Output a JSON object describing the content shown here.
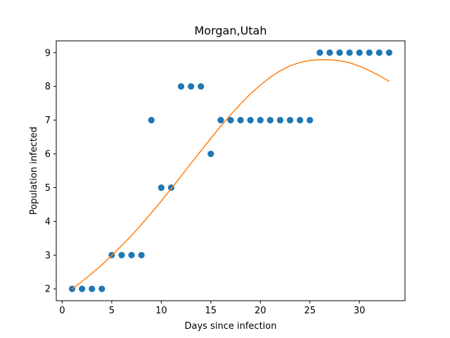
{
  "chart_data": {
    "type": "scatter",
    "title": "Morgan,Utah",
    "xlabel": "Days since infection",
    "ylabel": "Population infected",
    "xlim": [
      -0.6,
      34.6
    ],
    "ylim": [
      1.65,
      9.35
    ],
    "xticks": [
      0,
      5,
      10,
      15,
      20,
      25,
      30
    ],
    "yticks": [
      2,
      3,
      4,
      5,
      6,
      7,
      8,
      9
    ],
    "grid": false,
    "series": [
      {
        "kind": "scatter",
        "color": "#1f77b4",
        "x": [
          1,
          2,
          3,
          4,
          5,
          6,
          7,
          8,
          9,
          10,
          11,
          12,
          13,
          14,
          15,
          16,
          17,
          18,
          19,
          20,
          21,
          22,
          23,
          24,
          25,
          26,
          27,
          28,
          29,
          30,
          31,
          32,
          33
        ],
        "y": [
          2,
          2,
          2,
          2,
          3,
          3,
          3,
          3,
          7,
          5,
          5,
          8,
          8,
          8,
          6,
          7,
          7,
          7,
          7,
          7,
          7,
          7,
          7,
          7,
          7,
          9,
          9,
          9,
          9,
          9,
          9,
          9,
          9
        ]
      },
      {
        "kind": "line",
        "color": "#ff7f0e",
        "x": [
          1,
          2,
          3,
          4,
          5,
          6,
          7,
          8,
          9,
          10,
          11,
          12,
          13,
          14,
          15,
          16,
          17,
          18,
          19,
          20,
          21,
          22,
          23,
          24,
          25,
          26,
          27,
          28,
          29,
          30,
          31,
          32,
          33
        ],
        "y": [
          2.0,
          2.22,
          2.46,
          2.71,
          2.99,
          3.28,
          3.58,
          3.91,
          4.25,
          4.6,
          4.97,
          5.34,
          5.72,
          6.09,
          6.46,
          6.82,
          7.16,
          7.48,
          7.78,
          8.04,
          8.27,
          8.46,
          8.61,
          8.71,
          8.77,
          8.79,
          8.79,
          8.76,
          8.7,
          8.6,
          8.47,
          8.32,
          8.15
        ]
      }
    ]
  }
}
